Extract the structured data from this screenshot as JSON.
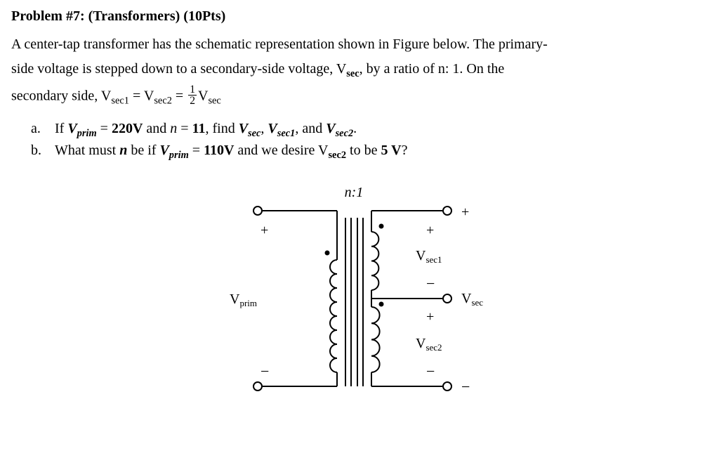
{
  "title": "Problem #7: (Transformers) (10Pts)",
  "para_parts": {
    "p1a": "A center-tap transformer has the schematic representation shown in Figure below. The primary-",
    "p1b": "side voltage is stepped down to a secondary-side voltage, V",
    "p1b_sub": "sec",
    "p1c": ", by a ratio of n: 1. On the",
    "p2a": "secondary side, V",
    "p2a_sub": "sec1",
    "p2b": " = V",
    "p2b_sub": "sec2",
    "p2c": " = ",
    "frac_num": "1",
    "frac_den": "2",
    "p2d": "V",
    "p2d_sub": "sec"
  },
  "questions": {
    "a": {
      "label": "a.",
      "t1": "If ",
      "v1": "V",
      "v1sub": "prim",
      "eq1": " = ",
      "val1": "220V",
      "t2": "  and ",
      "nvar": "n",
      "eq2": " = ",
      "val2": "11",
      "t3": ", find ",
      "v2": "V",
      "v2sub": "sec",
      "c1": ", ",
      "v3": "V",
      "v3sub": "sec1",
      "c2": ", and ",
      "v4": "V",
      "v4sub": "sec2",
      "end": "."
    },
    "b": {
      "label": "b.",
      "t1": "What must ",
      "nvar": "n",
      "t2": " be if ",
      "v1": "V",
      "v1sub": "prim",
      "eq1": " = ",
      "val1": "110V",
      "t3": "  and we desire V",
      "v2sub": "sec2",
      "t4": " to be ",
      "val2": "5 V",
      "end": "?"
    }
  },
  "diagram": {
    "ratio_label": "n:1",
    "vprim": "V",
    "vprim_sub": "prim",
    "vsec": "V",
    "vsec_sub": "sec",
    "vsec1": "V",
    "vsec1_sub": "sec1",
    "vsec2": "V",
    "vsec2_sub": "sec2",
    "colors": {
      "stroke": "#000000",
      "fill_bg": "#ffffff",
      "terminal_fill": "#ffffff"
    },
    "stroke_width": 2
  }
}
